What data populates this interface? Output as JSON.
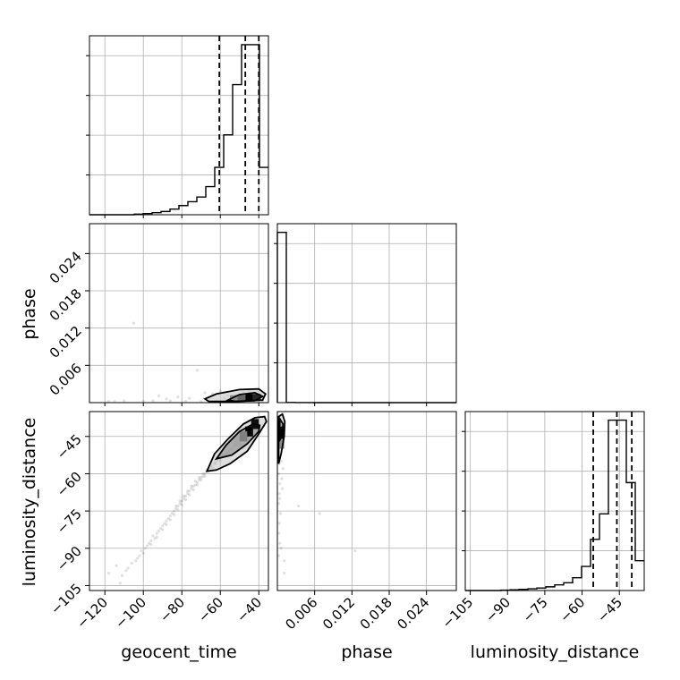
{
  "chart_data": {
    "type": "corner",
    "parameters": [
      "geocent_time",
      "phase",
      "luminosity_distance"
    ],
    "axis_labels": {
      "geocent_time": "geocent_time",
      "phase": "phase",
      "luminosity_distance": "luminosity_distance"
    },
    "ranges": {
      "geocent_time": [
        -128,
        -35
      ],
      "phase": [
        0.0,
        0.0288
      ],
      "luminosity_distance": [
        -107,
        -35
      ]
    },
    "ticks": {
      "geocent_time": [
        -120,
        -100,
        -80,
        -60,
        -40
      ],
      "phase": [
        0.006,
        0.012,
        0.018,
        0.024
      ],
      "luminosity_distance": [
        -105,
        -90,
        -75,
        -60,
        -45
      ]
    },
    "tick_labels": {
      "geocent_time": [
        "−120",
        "−100",
        "−80",
        "−60",
        "−40"
      ],
      "phase": [
        "0.006",
        "0.012",
        "0.018",
        "0.024"
      ],
      "luminosity_distance": [
        "−105",
        "−90",
        "−75",
        "−60",
        "−45"
      ]
    },
    "histograms": {
      "geocent_time": {
        "bin_edges": [
          -128,
          -123.35,
          -118.7,
          -114.05,
          -109.4,
          -104.75,
          -100.1,
          -95.45,
          -90.8,
          -86.15,
          -81.5,
          -76.85,
          -72.2,
          -67.55,
          -62.9,
          -58.25,
          -53.6,
          -48.95,
          -44.3,
          -39.65,
          -35
        ],
        "counts": [
          0,
          0,
          0,
          0,
          0,
          4,
          8,
          14,
          22,
          38,
          62,
          88,
          120,
          190,
          320,
          540,
          880,
          1150,
          1150,
          320
        ],
        "quantiles": [
          -60.5,
          -47,
          -40
        ],
        "ymax": 1210
      },
      "phase": {
        "bin_edges": [
          0,
          0.00144,
          0.00288,
          0.00432,
          0.00576,
          0.0072,
          0.00864,
          0.01008,
          0.01152,
          0.01296,
          0.0144,
          0.01584,
          0.01728,
          0.01872,
          0.02016,
          0.0216,
          0.02304,
          0.02448,
          0.02592,
          0.02736,
          0.0288
        ],
        "counts": [
          3950,
          3,
          1,
          1,
          0,
          0,
          0,
          0,
          0,
          0,
          0,
          0,
          0,
          0,
          0,
          0,
          0,
          0,
          0,
          0
        ],
        "quantiles": [],
        "ymax": 4150
      },
      "luminosity_distance": {
        "bin_edges": [
          -107,
          -103.4,
          -99.8,
          -96.2,
          -92.6,
          -89,
          -85.4,
          -81.8,
          -78.2,
          -74.6,
          -71,
          -67.4,
          -63.8,
          -60.2,
          -56.6,
          -53,
          -49.4,
          -45.8,
          -42.2,
          -38.6,
          -35
        ],
        "counts": [
          0,
          0,
          0,
          0,
          3,
          5,
          8,
          12,
          18,
          26,
          40,
          55,
          90,
          170,
          360,
          540,
          1200,
          1200,
          760,
          210
        ],
        "quantiles": [
          -55.5,
          -46,
          -40
        ],
        "ymax": 1260
      }
    },
    "scatter_samples": {
      "geocent_time_vs_phase": [
        [
          -105,
          0.0128
        ],
        [
          -110,
          0.0003
        ],
        [
          -95,
          0.0003
        ],
        [
          -88,
          0.0006
        ],
        [
          -76,
          0.0007
        ],
        [
          -72,
          0.0052
        ],
        [
          -82,
          0.0009
        ],
        [
          -92,
          0.0011
        ],
        [
          -68,
          0.0016
        ],
        [
          -64,
          0.0014
        ],
        [
          -60,
          0.0019
        ],
        [
          -58,
          0.0007
        ],
        [
          -56,
          0.0011
        ],
        [
          -54,
          0.0009
        ],
        [
          -66,
          0.0006
        ],
        [
          -86,
          0.0003
        ],
        [
          -100,
          0.0002
        ],
        [
          -115,
          0.0002
        ],
        [
          -118,
          0.0002
        ],
        [
          -78,
          0.0002
        ],
        [
          -70,
          0.0002
        ],
        [
          -62,
          0.0003
        ],
        [
          -50,
          0.0004
        ],
        [
          -47,
          0.0005
        ],
        [
          -44,
          0.0006
        ],
        [
          -41,
          0.0004
        ],
        [
          -38,
          0.0003
        ],
        [
          -52,
          0.0013
        ],
        [
          -48,
          0.0016
        ],
        [
          -45,
          0.0018
        ],
        [
          -42,
          0.0014
        ],
        [
          -46,
          0.0009
        ],
        [
          -53,
          0.0005
        ],
        [
          -39,
          0.0008
        ],
        [
          -57,
          0.0004
        ]
      ],
      "geocent_time_vs_luminosity_distance": [
        [
          -111,
          -101
        ],
        [
          -108,
          -98
        ],
        [
          -104,
          -95
        ],
        [
          -102,
          -93
        ],
        [
          -100,
          -92
        ],
        [
          -98,
          -89
        ],
        [
          -96,
          -87
        ],
        [
          -94,
          -86
        ],
        [
          -93,
          -84
        ],
        [
          -91,
          -82
        ],
        [
          -90,
          -81
        ],
        [
          -88,
          -79
        ],
        [
          -87,
          -78
        ],
        [
          -86,
          -77
        ],
        [
          -85,
          -76
        ],
        [
          -84,
          -75
        ],
        [
          -83,
          -74
        ],
        [
          -82,
          -73
        ],
        [
          -81,
          -72
        ],
        [
          -80,
          -71
        ],
        [
          -79,
          -70
        ],
        [
          -78,
          -69
        ],
        [
          -77,
          -68
        ],
        [
          -76,
          -67
        ],
        [
          -75,
          -66
        ],
        [
          -74,
          -65
        ],
        [
          -73,
          -64.5
        ],
        [
          -72,
          -63.5
        ],
        [
          -71,
          -62.5
        ],
        [
          -70,
          -61.5
        ],
        [
          -69,
          -61
        ],
        [
          -68,
          -60
        ],
        [
          -67,
          -59
        ],
        [
          -66,
          -58
        ],
        [
          -65,
          -57.5
        ],
        [
          -64,
          -57
        ],
        [
          -63,
          -56
        ],
        [
          -62,
          -55
        ],
        [
          -61,
          -54.5
        ],
        [
          -60,
          -54
        ],
        [
          -59,
          -53
        ],
        [
          -58,
          -52.5
        ],
        [
          -57,
          -52
        ],
        [
          -56,
          -51
        ],
        [
          -55,
          -50.5
        ],
        [
          -54,
          -50
        ],
        [
          -53,
          -49
        ],
        [
          -89,
          -80
        ],
        [
          -92,
          -83
        ],
        [
          -95,
          -85
        ],
        [
          -97,
          -88
        ],
        [
          -99,
          -90
        ],
        [
          -101,
          -91
        ],
        [
          -103,
          -94
        ],
        [
          -106,
          -96
        ],
        [
          -109,
          -99
        ],
        [
          -84,
          -76.5
        ],
        [
          -82,
          -74.5
        ],
        [
          -80,
          -72.5
        ],
        [
          -78,
          -70.5
        ],
        [
          -76,
          -68.5
        ],
        [
          -74,
          -66.5
        ],
        [
          -72,
          -64.5
        ],
        [
          -70,
          -62.5
        ],
        [
          -68,
          -61
        ],
        [
          -66,
          -59
        ],
        [
          -64,
          -58
        ],
        [
          -62,
          -56
        ],
        [
          -60,
          -55
        ],
        [
          -83,
          -73
        ],
        [
          -81,
          -71
        ],
        [
          -79,
          -69
        ],
        [
          -77,
          -67
        ],
        [
          -75,
          -65
        ],
        [
          -73,
          -63
        ],
        [
          -71,
          -61.5
        ],
        [
          -69,
          -60
        ],
        [
          -67,
          -58.5
        ],
        [
          -65,
          -56.5
        ],
        [
          -63,
          -55.5
        ],
        [
          -61,
          -53.5
        ],
        [
          -59,
          -52.5
        ],
        [
          -86,
          -78.5
        ],
        [
          -88,
          -80.5
        ],
        [
          -90,
          -82.5
        ],
        [
          -93,
          -85.5
        ],
        [
          -96,
          -88.5
        ],
        [
          -112,
          -104
        ],
        [
          -118,
          -100
        ],
        [
          -114,
          -97
        ]
      ],
      "phase_vs_luminosity_distance": [
        [
          0.0002,
          -52
        ],
        [
          0.0003,
          -56
        ],
        [
          0.0002,
          -60
        ],
        [
          0.0004,
          -64
        ],
        [
          0.0003,
          -68
        ],
        [
          0.0002,
          -72
        ],
        [
          0.0005,
          -76
        ],
        [
          0.0003,
          -80
        ],
        [
          0.0002,
          -84
        ],
        [
          0.0004,
          -88
        ],
        [
          0.0006,
          -90
        ],
        [
          0.0002,
          -93
        ],
        [
          0.0011,
          -95
        ],
        [
          0.0011,
          -100
        ],
        [
          0.0034,
          -73
        ],
        [
          0.0068,
          -76
        ],
        [
          0.0125,
          -91
        ],
        [
          0.0009,
          -58
        ],
        [
          0.0007,
          -62
        ],
        [
          0.0004,
          -70
        ],
        [
          0.0005,
          -49
        ],
        [
          0.0006,
          -55
        ],
        [
          0.0003,
          -47
        ],
        [
          0.0008,
          -66
        ]
      ]
    },
    "density_2d": {
      "geocent_time_vs_phase": {
        "contours": [
          [
            [
              -68,
              0.0006
            ],
            [
              -62,
              0.0014
            ],
            [
              -50,
              0.0021
            ],
            [
              -40,
              0.0022
            ],
            [
              -36.5,
              0.0014
            ],
            [
              -38,
              0.0004
            ],
            [
              -52,
              0.0002
            ],
            [
              -66,
              0.0002
            ]
          ],
          [
            [
              -56,
              0.0004
            ],
            [
              -50,
              0.0013
            ],
            [
              -42,
              0.0016
            ],
            [
              -38,
              0.001
            ],
            [
              -42,
              0.0003
            ],
            [
              -52,
              0.0002
            ]
          ]
        ],
        "dense_cells": [
          [
            -47,
            -43,
            0.0003,
            0.0014,
            1.0
          ],
          [
            -43,
            -39,
            0.0003,
            0.0014,
            0.85
          ],
          [
            -55,
            -51,
            0.0002,
            0.0012,
            0.45
          ],
          [
            -51,
            -47,
            0.0002,
            0.0012,
            0.6
          ]
        ]
      },
      "geocent_time_vs_luminosity_distance": {
        "contours": [
          [
            [
              -67,
              -59
            ],
            [
              -63,
              -52
            ],
            [
              -56,
              -46
            ],
            [
              -48,
              -40
            ],
            [
              -42,
              -37.5
            ],
            [
              -37,
              -37
            ],
            [
              -36,
              -39
            ],
            [
              -40,
              -44
            ],
            [
              -46,
              -51
            ],
            [
              -55,
              -56
            ],
            [
              -62,
              -58.5
            ]
          ],
          [
            [
              -62,
              -54
            ],
            [
              -57,
              -48.5
            ],
            [
              -50,
              -43
            ],
            [
              -43,
              -40
            ],
            [
              -39.5,
              -40.5
            ],
            [
              -40,
              -43
            ],
            [
              -46,
              -48
            ],
            [
              -54,
              -52.5
            ]
          ]
        ],
        "dense_cells": [
          [
            -47,
            -43,
            -45,
            -41,
            1.0
          ],
          [
            -44,
            -40,
            -42,
            -38,
            0.95
          ],
          [
            -53,
            -49,
            -49,
            -45,
            0.35
          ],
          [
            -50,
            -46,
            -47,
            -43,
            0.5
          ]
        ]
      },
      "phase_vs_luminosity_distance": {
        "contours": [
          [
            [
              0.0002,
              -56
            ],
            [
              0.0006,
              -52
            ],
            [
              0.0011,
              -45
            ],
            [
              0.0012,
              -39
            ],
            [
              0.0008,
              -36
            ],
            [
              0.0002,
              -37
            ]
          ],
          [
            [
              0.0003,
              -47
            ],
            [
              0.0008,
              -44
            ],
            [
              0.0009,
              -40
            ],
            [
              0.0004,
              -38
            ]
          ]
        ],
        "dense_cells": [
          [
            0.0002,
            0.0011,
            -46,
            -41,
            1.0
          ],
          [
            0.0002,
            0.0011,
            -50,
            -46,
            0.45
          ]
        ]
      }
    }
  }
}
